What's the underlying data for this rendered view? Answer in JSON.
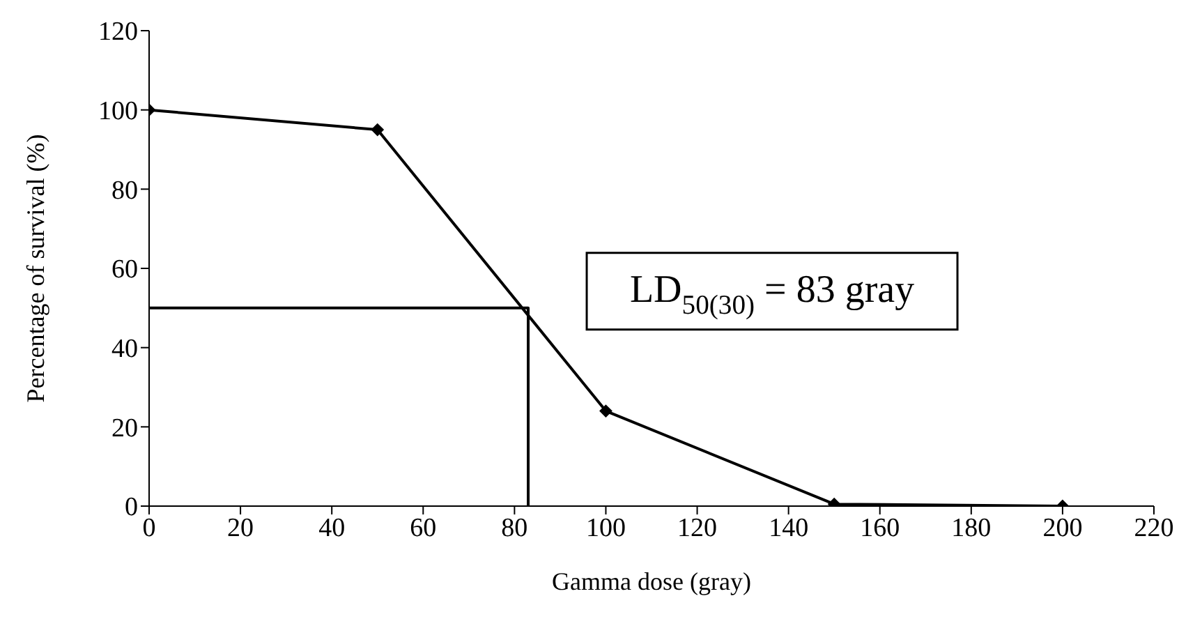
{
  "chart_data": {
    "type": "line",
    "xlabel": "Gamma dose (gray)",
    "ylabel": "Percentage of survival (%)",
    "xlim": [
      0,
      220
    ],
    "xticks": [
      0,
      20,
      40,
      60,
      80,
      100,
      120,
      140,
      160,
      180,
      200,
      220
    ],
    "ylim": [
      0,
      120
    ],
    "yticks": [
      0,
      20,
      40,
      60,
      80,
      100,
      120
    ],
    "grid": false,
    "legend": false,
    "annotations": [
      "LD$_{50(30)}$ = 83 gray"
    ],
    "series": [
      {
        "x": [
          0,
          50,
          100,
          150,
          200
        ],
        "values": [
          100,
          95,
          24,
          0.5,
          0
        ],
        "color": "#000000",
        "marker": "diamond",
        "line_style": "solid"
      },
      {
        "x": [
          0,
          83,
          83
        ],
        "values": [
          50,
          50,
          0
        ],
        "color": "#000000",
        "marker": "none",
        "line_style": "solid"
      }
    ]
  }
}
